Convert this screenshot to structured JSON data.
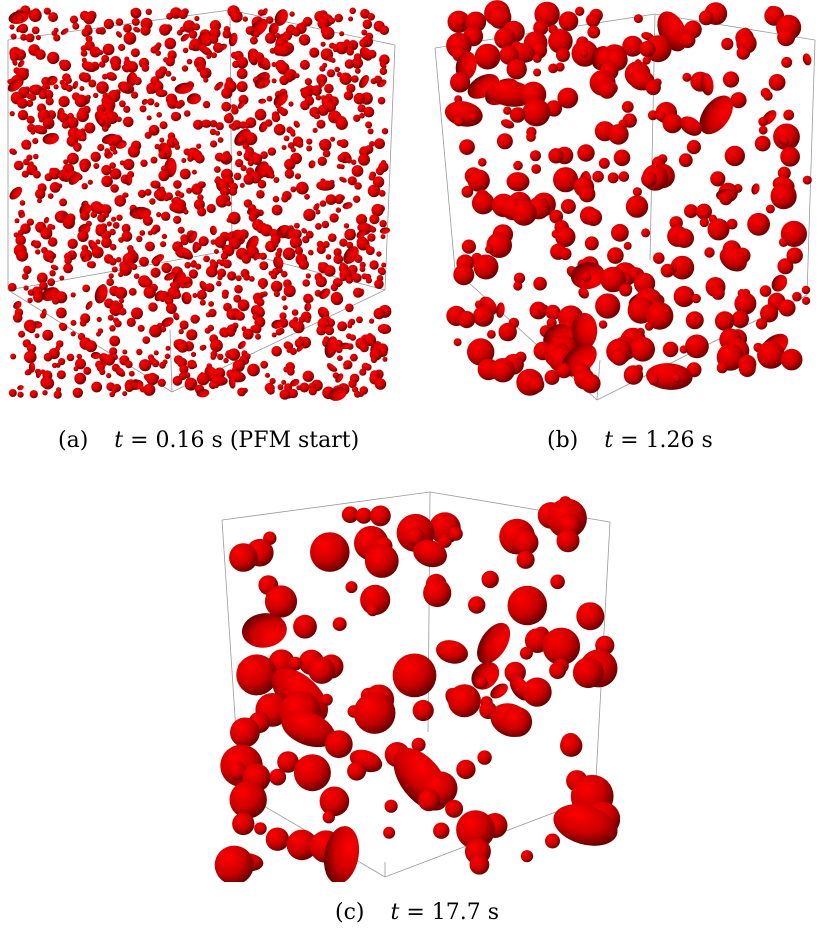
{
  "figure": {
    "panels": [
      {
        "id": "a",
        "label": "(a)",
        "caption_var": "t",
        "caption_eq": " = 0.16 s (PFM start)",
        "droplet_color": "#cc0000",
        "droplet_count": 1400
      },
      {
        "id": "b",
        "label": "(b)",
        "caption_var": "t",
        "caption_eq": " = 1.26 s",
        "droplet_color": "#cc0000",
        "droplet_count": 330
      },
      {
        "id": "c",
        "label": "(c)",
        "caption_var": "t",
        "caption_eq": " = 17.7 s",
        "droplet_color": "#cc0000",
        "droplet_count": 130
      }
    ]
  }
}
